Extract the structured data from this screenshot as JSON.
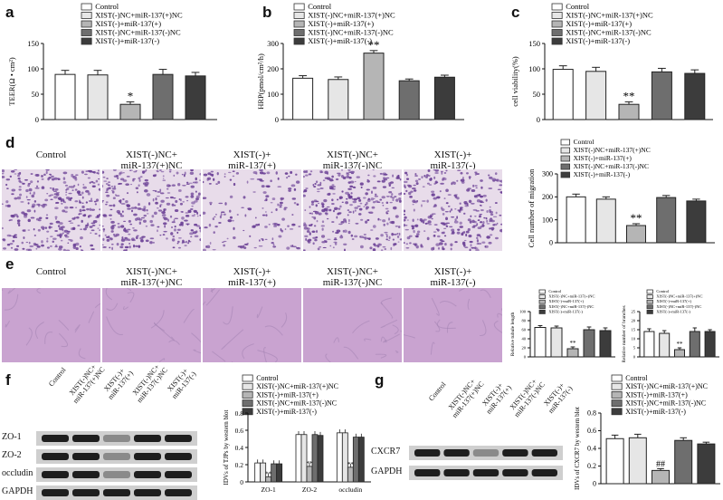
{
  "panels": {
    "a": {
      "label": "a"
    },
    "b": {
      "label": "b"
    },
    "c": {
      "label": "c"
    },
    "d": {
      "label": "d"
    },
    "e": {
      "label": "e"
    },
    "f": {
      "label": "f"
    },
    "g": {
      "label": "g"
    }
  },
  "legend5": [
    "Control",
    "XIST(-)NC+miR-137(+)NC",
    "XIST(-)+miR-137(+)",
    "XIST(-)NC+miR-137(-)NC",
    "XIST(-)+miR-137(-)"
  ],
  "legend_f": [
    "Control",
    "XIST(-)NC+miR-137(+)NC",
    "XIST(-)+miR-137(+)",
    "XIST(-)NC+miR-137(-)NC",
    "XIST(-)+miR-137(-)"
  ],
  "colors": [
    "#ffffff",
    "#e6e6e6",
    "#b5b5b5",
    "#6e6e6e",
    "#3c3c3c"
  ],
  "image_groups": [
    "Control",
    "XIST(-)NC+\nmiR-137(+)NC",
    "XIST(-)+\nmiR-137(+)",
    "XIST(-)NC+\nmiR-137(-)NC",
    "XIST(-)+\nmiR-137(-)"
  ],
  "blot_f": {
    "lanes": [
      "Control",
      "XIST(-)NC+\nmiR-137(+)NC",
      "XIST(-)+\nmiR-137(+)",
      "XIST(-)NC+\nmiR-137(-)NC",
      "XIST(-)+\nmiR-137(-)"
    ],
    "rows": [
      "ZO-1",
      "ZO-2",
      "occludin",
      "GAPDH"
    ]
  },
  "blot_g": {
    "lanes": [
      "Control",
      "XIST(-)NC+\nmiR-137(+)NC",
      "XIST(-)+\nmiR-137(+)",
      "XIST(-)NC+\nmiR-137(-)NC",
      "XIST(-)+\nmiR-137(-)"
    ],
    "rows": [
      "CXCR7",
      "GAPDH"
    ]
  },
  "chart_data": [
    {
      "id": "a",
      "type": "bar",
      "categories": [
        "Control",
        "XIST(-)NC+miR-137(+)NC",
        "XIST(-)+miR-137(+)",
        "XIST(-)NC+miR-137(-)NC",
        "XIST(-)+miR-137(-)"
      ],
      "values": [
        89,
        88,
        30,
        89,
        86
      ],
      "errors": [
        8,
        9,
        5,
        10,
        7
      ],
      "ylabel": "TEER(Ω • cm²)",
      "ylim": [
        0,
        150
      ],
      "yticks": [
        0,
        50,
        100,
        150
      ],
      "annotations": [
        {
          "index": 2,
          "text": "*"
        }
      ]
    },
    {
      "id": "b",
      "type": "bar",
      "categories": [
        "Control",
        "XIST(-)NC+miR-137(+)NC",
        "XIST(-)+miR-137(+)",
        "XIST(-)NC+miR-137(-)NC",
        "XIST(-)+miR-137(-)"
      ],
      "values": [
        163,
        158,
        262,
        153,
        167
      ],
      "errors": [
        10,
        10,
        10,
        7,
        8
      ],
      "ylabel": "HRP(pmol/cm²/h)",
      "ylim": [
        0,
        300
      ],
      "yticks": [
        0,
        100,
        200,
        300
      ],
      "annotations": [
        {
          "index": 2,
          "text": "**"
        }
      ]
    },
    {
      "id": "c",
      "type": "bar",
      "categories": [
        "Control",
        "XIST(-)NC+miR-137(+)NC",
        "XIST(-)+miR-137(+)",
        "XIST(-)NC+miR-137(-)NC",
        "XIST(-)+miR-137(-)"
      ],
      "values": [
        99,
        95,
        30,
        94,
        91
      ],
      "errors": [
        7,
        8,
        5,
        7,
        7
      ],
      "ylabel": "cell viability(%)",
      "ylim": [
        0,
        150
      ],
      "yticks": [
        0,
        50,
        100,
        150
      ],
      "annotations": [
        {
          "index": 2,
          "text": "**"
        }
      ]
    },
    {
      "id": "d",
      "type": "bar",
      "categories": [
        "Control",
        "XIST(-)NC+miR-137(+)NC",
        "XIST(-)+miR-137(+)",
        "XIST(-)NC+miR-137(-)NC",
        "XIST(-)+miR-137(-)"
      ],
      "values": [
        200,
        190,
        75,
        197,
        182
      ],
      "errors": [
        12,
        10,
        8,
        9,
        8
      ],
      "ylabel": "Cell number of migration",
      "ylim": [
        0,
        300
      ],
      "yticks": [
        0,
        100,
        200,
        300
      ],
      "annotations": [
        {
          "index": 2,
          "text": "**"
        }
      ]
    },
    {
      "id": "e1",
      "type": "bar",
      "categories": [
        "Control",
        "XIST(-)NC+miR-137(+)NC",
        "XIST(-)+miR-137(+)",
        "XIST(-)NC+miR-137(-)NC",
        "XIST(-)+miR-137(-)"
      ],
      "values": [
        65,
        64,
        18,
        60,
        58
      ],
      "errors": [
        4,
        4,
        4,
        6,
        6
      ],
      "ylabel": "Relative tubule length",
      "ylim": [
        0,
        100
      ],
      "yticks": [
        0,
        20,
        40,
        60,
        80,
        100
      ],
      "annotations": [
        {
          "index": 2,
          "text": "**"
        }
      ]
    },
    {
      "id": "e2",
      "type": "bar",
      "categories": [
        "Control",
        "XIST(-)NC+miR-137(+)NC",
        "XIST(-)+miR-137(+)",
        "XIST(-)NC+miR-137(-)NC",
        "XIST(-)+miR-137(-)"
      ],
      "values": [
        14,
        13,
        4,
        14,
        14
      ],
      "errors": [
        1.5,
        1.5,
        1,
        2,
        1
      ],
      "ylabel": "Relative number of branches",
      "ylim": [
        0,
        25
      ],
      "yticks": [
        0,
        5,
        10,
        15,
        20,
        25
      ],
      "annotations": [
        {
          "index": 2,
          "text": "**"
        }
      ]
    },
    {
      "id": "f",
      "type": "bar",
      "categories": [
        "ZO-1",
        "ZO-2",
        "occludin"
      ],
      "series": [
        {
          "name": "Control",
          "values": [
            0.22,
            0.55,
            0.57
          ]
        },
        {
          "name": "XIST(-)NC+miR-137(+)NC",
          "values": [
            0.22,
            0.55,
            0.57
          ]
        },
        {
          "name": "XIST(-)+miR-137(+)",
          "values": [
            0.06,
            0.18,
            0.17
          ]
        },
        {
          "name": "XIST(-)NC+miR-137(-)NC",
          "values": [
            0.21,
            0.55,
            0.52
          ]
        },
        {
          "name": "XIST(-)+miR-137(-)",
          "values": [
            0.21,
            0.54,
            0.52
          ]
        }
      ],
      "ylabel": "IDVs of TJPs by western blot",
      "ylim": [
        0,
        0.8
      ],
      "yticks": [
        0,
        0.2,
        0.4,
        0.6,
        0.8
      ],
      "annotations": [
        {
          "group": 0,
          "index": 2,
          "text": "**"
        },
        {
          "group": 1,
          "index": 2,
          "text": "**"
        },
        {
          "group": 2,
          "index": 2,
          "text": "**"
        }
      ]
    },
    {
      "id": "g",
      "type": "bar",
      "categories": [
        "Control",
        "XIST(-)NC+miR-137(+)NC",
        "XIST(-)+miR-137(+)",
        "XIST(-)NC+miR-137(-)NC",
        "XIST(-)+miR-137(-)"
      ],
      "values": [
        0.51,
        0.52,
        0.15,
        0.49,
        0.45
      ],
      "errors": [
        0.04,
        0.04,
        0.02,
        0.03,
        0.02
      ],
      "ylabel": "IDVs of CXCR7 by western blot",
      "ylim": [
        0,
        0.8
      ],
      "yticks": [
        0,
        0.2,
        0.4,
        0.6,
        0.8
      ],
      "annotations": [
        {
          "index": 2,
          "text": "##"
        }
      ]
    }
  ]
}
